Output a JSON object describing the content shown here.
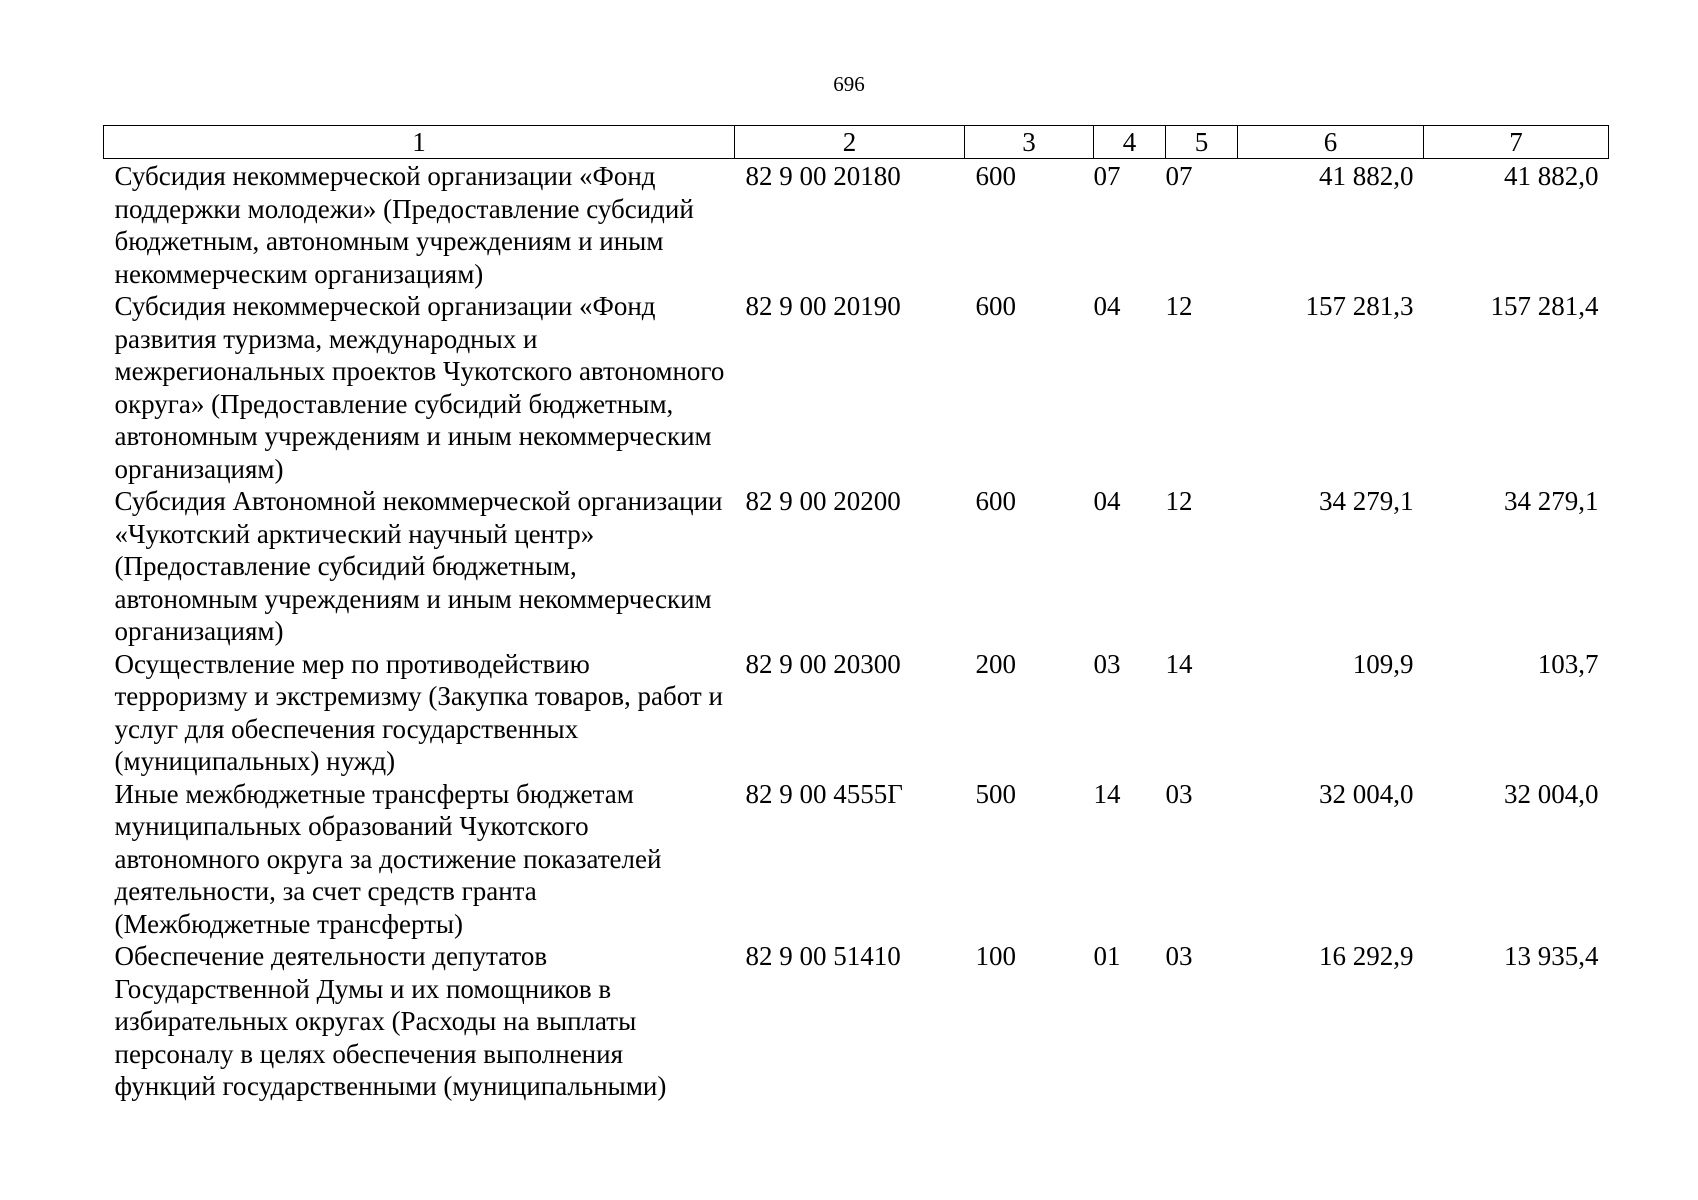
{
  "page": {
    "number": "696"
  },
  "table": {
    "headers": [
      "1",
      "2",
      "3",
      "4",
      "5",
      "6",
      "7"
    ],
    "rows": [
      {
        "name": "Субсидия некоммерческой организации «Фонд поддержки молодежи» (Предоставление субсидий бюджетным, автономным учреждениям и иным некоммерческим организациям)",
        "code": "82 9 00 20180",
        "group": "600",
        "section": "07",
        "subsection": "07",
        "amount1": "41 882,0",
        "amount2": "41 882,0"
      },
      {
        "name": "Субсидия некоммерческой организации «Фонд развития туризма, международных и межрегиональных проектов Чукотского автономного округа» (Предоставление субсидий бюджетным, автономным учреждениям и иным некоммерческим организациям)",
        "code": "82 9 00 20190",
        "group": "600",
        "section": "04",
        "subsection": "12",
        "amount1": "157 281,3",
        "amount2": "157 281,4"
      },
      {
        "name": "Субсидия Автономной некоммерческой организации «Чукотский арктический научный центр» (Предоставление субсидий бюджетным, автономным учреждениям и иным некоммерческим организациям)",
        "code": "82 9 00 20200",
        "group": "600",
        "section": "04",
        "subsection": "12",
        "amount1": "34 279,1",
        "amount2": "34 279,1"
      },
      {
        "name": "Осуществление мер по противодействию терроризму и экстремизму (Закупка товаров, работ и услуг для обеспечения государственных (муниципальных) нужд)",
        "code": "82 9 00 20300",
        "group": "200",
        "section": "03",
        "subsection": "14",
        "amount1": "109,9",
        "amount2": "103,7"
      },
      {
        "name": "Иные межбюджетные трансферты бюджетам муниципальных образований Чукотского автономного округа за достижение показателей деятельности, за счет средств гранта (Межбюджетные трансферты)",
        "code": "82 9 00 4555Г",
        "group": "500",
        "section": "14",
        "subsection": "03",
        "amount1": "32 004,0",
        "amount2": "32 004,0"
      },
      {
        "name": "Обеспечение деятельности депутатов Государственной Думы и их помощников в избирательных округах (Расходы на выплаты персоналу в целях обеспечения выполнения функций государственными (муниципальными)",
        "code": "82 9 00 51410",
        "group": "100",
        "section": "01",
        "subsection": "03",
        "amount1": "16 292,9",
        "amount2": "13 935,4"
      }
    ]
  }
}
